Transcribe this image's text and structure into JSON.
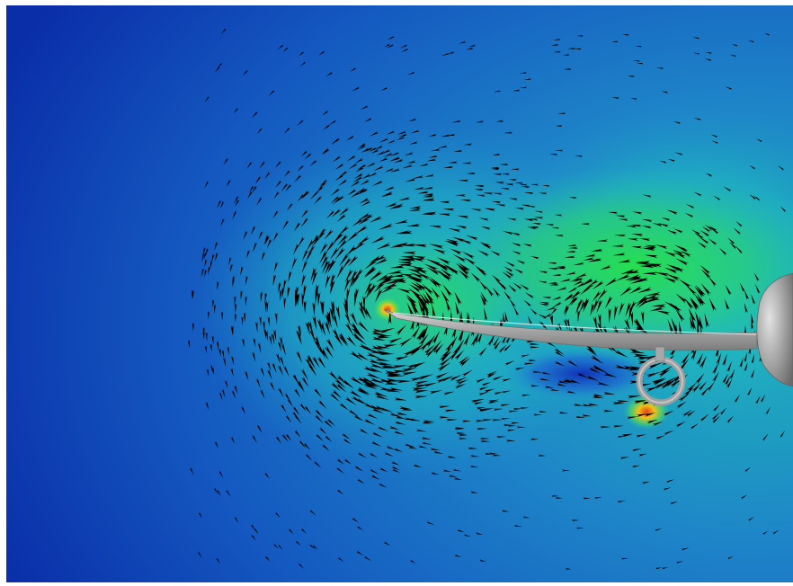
{
  "scene": {
    "description_visible_text": "",
    "colormap": {
      "low": "#0a2ea8",
      "mid_low": "#1a63c8",
      "mid": "#19b6c8",
      "mid_high": "#20d860",
      "high": "#f2e21a",
      "peak": "#e8401c"
    },
    "geometry_color": "#a9a9a9",
    "glyph_color": "#000000",
    "background": "#ffffff"
  }
}
